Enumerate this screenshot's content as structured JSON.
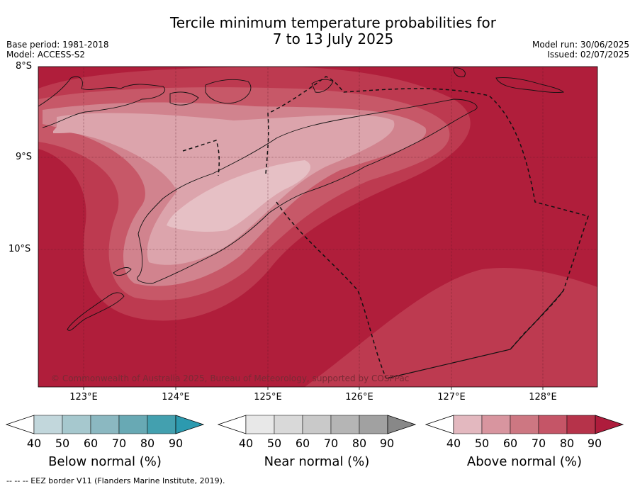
{
  "title_line1": "Tercile minimum temperature probabilities for",
  "title_line2": "7 to 13 July 2025",
  "meta_left": [
    "Base period: 1981-2018",
    "Model: ACCESS-S2"
  ],
  "meta_right": [
    "Model run: 30/06/2025",
    "Issued: 02/07/2025"
  ],
  "lat_labels": [
    "8°S",
    "9°S",
    "10°S"
  ],
  "lon_labels": [
    "123°E",
    "124°E",
    "125°E",
    "126°E",
    "127°E",
    "128°E"
  ],
  "copyright": "© Commonwealth of Australia 2025, Bureau of Meteorology, supported by COSPPac",
  "legends": [
    {
      "title": "Below normal (%)",
      "ticks": [
        "40",
        "50",
        "60",
        "70",
        "80",
        "90"
      ],
      "colors": [
        "#ffffff",
        "#c2d7dc",
        "#a6c8ce",
        "#8bb8c1",
        "#68a9b4",
        "#43a0af",
        "#2c9aaf"
      ]
    },
    {
      "title": "Near normal (%)",
      "ticks": [
        "40",
        "50",
        "60",
        "70",
        "80",
        "90"
      ],
      "colors": [
        "#ffffff",
        "#e8e8e8",
        "#d9d9d9",
        "#c9c9c9",
        "#b5b5b5",
        "#a1a1a1",
        "#888888"
      ]
    },
    {
      "title": "Above normal (%)",
      "ticks": [
        "40",
        "50",
        "60",
        "70",
        "80",
        "90"
      ],
      "colors": [
        "#ffffff",
        "#e3b8bf",
        "#d8959f",
        "#cd7782",
        "#c55567",
        "#b6334a",
        "#ae1c3c"
      ]
    }
  ],
  "footnote": "--  --  -- EEZ border V11 (Flanders Marine Institute, 2019).",
  "colors": {
    "high": "#b01e3b",
    "c80": "#bd3a50",
    "c70": "#c75868",
    "c60": "#d1838e",
    "c50": "#dca4ac",
    "c40": "#e6c0c5"
  }
}
